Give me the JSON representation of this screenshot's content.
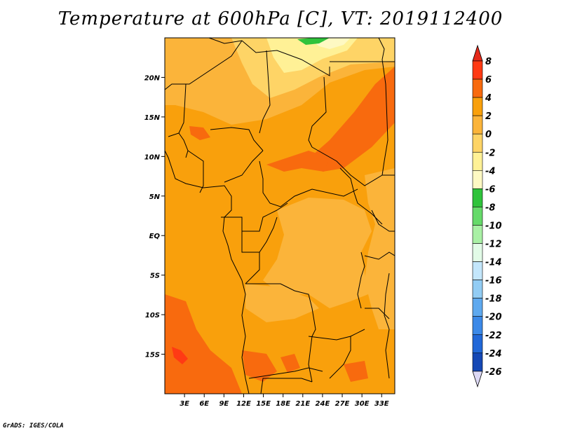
{
  "title": "Temperature at 600hPa [C], VT: 2019112400",
  "credit": "GrADS: IGES/COLA",
  "map": {
    "lon_range": [
      0,
      35
    ],
    "lat_range": [
      -20,
      25
    ],
    "lon_ticks": [
      "3E",
      "6E",
      "9E",
      "12E",
      "15E",
      "18E",
      "21E",
      "24E",
      "27E",
      "30E",
      "33E"
    ],
    "lat_ticks": [
      "20N",
      "15N",
      "10N",
      "5N",
      "EQ",
      "5S",
      "10S",
      "15S"
    ]
  },
  "colorbar": {
    "labels": [
      "8",
      "6",
      "4",
      "2",
      "0",
      "-2",
      "-4",
      "-6",
      "-8",
      "-10",
      "-12",
      "-14",
      "-16",
      "-18",
      "-20",
      "-22",
      "-24",
      "-26"
    ],
    "colors": [
      "#ff3a14",
      "#f86a0e",
      "#f9a00c",
      "#fbb43a",
      "#fed466",
      "#fff196",
      "#fef9c3",
      "#2fc33b",
      "#66da6a",
      "#a9f0a5",
      "#e2fbe7",
      "#c3e6fb",
      "#92ccf4",
      "#5ea9ef",
      "#3b89e8",
      "#2168d8",
      "#1548b5",
      "#0d278f",
      "#0b0e70",
      "#e2dafa"
    ],
    "top_triangle_color": "#e4291a",
    "bottom_triangle_color": "#dcd8f4"
  }
}
